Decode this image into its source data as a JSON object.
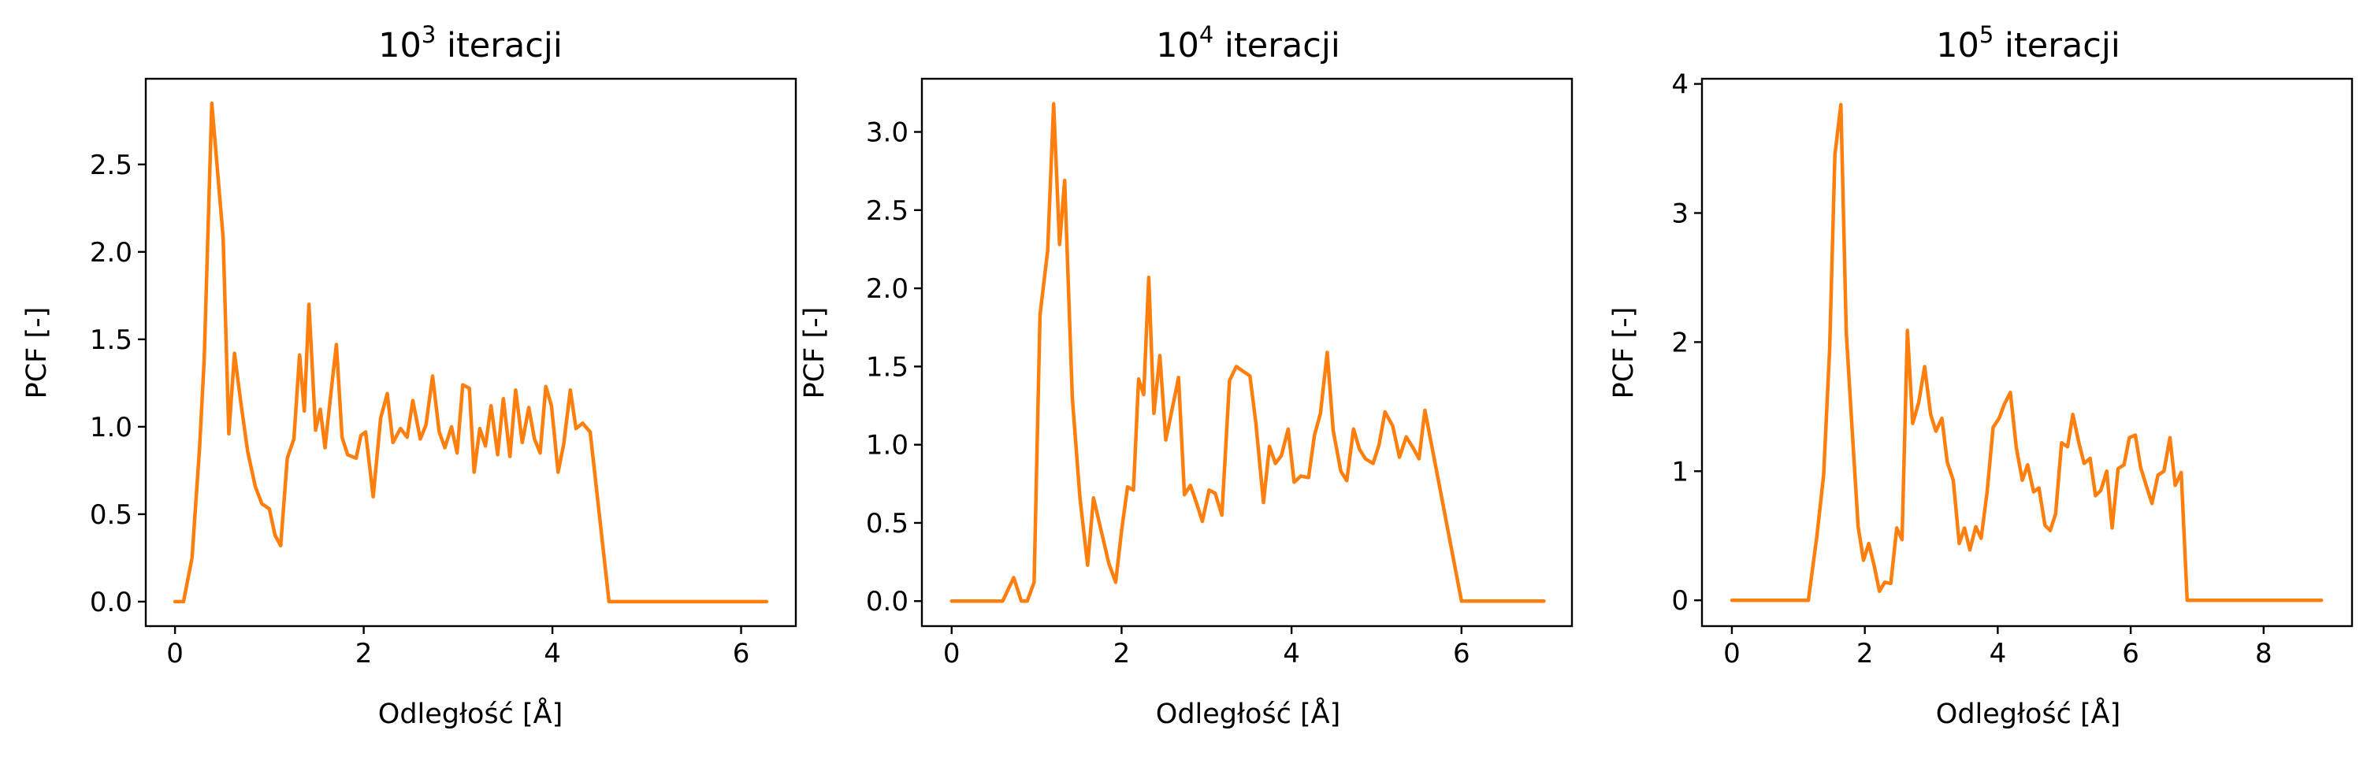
{
  "colors": {
    "series": "#ff7f0e",
    "axes": "#000000",
    "background": "#ffffff"
  },
  "chart_data": [
    {
      "type": "line",
      "title": "10",
      "title_sup": "3",
      "title_suffix": " iteracji",
      "xlabel": "Odległość [Å]",
      "ylabel": "PCF [-]",
      "xlim": [
        -0.31,
        6.58
      ],
      "ylim": [
        -0.14,
        2.99
      ],
      "xticks": [
        0,
        2,
        4,
        6
      ],
      "xtick_labels": [
        "0",
        "2",
        "4",
        "6"
      ],
      "yticks": [
        0.0,
        0.5,
        1.0,
        1.5,
        2.0,
        2.5
      ],
      "ytick_labels": [
        "0.0",
        "0.5",
        "1.0",
        "1.5",
        "2.0",
        "2.5"
      ],
      "grid": false,
      "series": [
        {
          "x": [
            0.0,
            0.09,
            0.18,
            0.26,
            0.31,
            0.39,
            0.44,
            0.51,
            0.57,
            0.63,
            0.7,
            0.77,
            0.85,
            0.92,
            1.0,
            1.06,
            1.12,
            1.19,
            1.26,
            1.32,
            1.37,
            1.42,
            1.49,
            1.54,
            1.59,
            1.65,
            1.71,
            1.77,
            1.83,
            1.92,
            1.97,
            2.02,
            2.1,
            2.18,
            2.25,
            2.31,
            2.39,
            2.46,
            2.52,
            2.6,
            2.66,
            2.73,
            2.8,
            2.86,
            2.93,
            2.99,
            3.05,
            3.12,
            3.17,
            3.23,
            3.29,
            3.35,
            3.42,
            3.48,
            3.55,
            3.61,
            3.68,
            3.75,
            3.81,
            3.87,
            3.93,
            3.99,
            4.06,
            4.12,
            4.19,
            4.25,
            4.32,
            4.4,
            4.6,
            5.0,
            5.5,
            6.0,
            6.27
          ],
          "y": [
            0.0,
            0.0,
            0.25,
            0.88,
            1.39,
            2.85,
            2.53,
            2.08,
            0.96,
            1.42,
            1.13,
            0.86,
            0.66,
            0.56,
            0.53,
            0.38,
            0.32,
            0.82,
            0.93,
            1.41,
            1.09,
            1.7,
            0.98,
            1.1,
            0.88,
            1.18,
            1.47,
            0.94,
            0.84,
            0.82,
            0.95,
            0.97,
            0.6,
            1.05,
            1.19,
            0.91,
            0.99,
            0.94,
            1.15,
            0.93,
            1.01,
            1.29,
            0.97,
            0.88,
            1.0,
            0.85,
            1.24,
            1.22,
            0.74,
            0.99,
            0.89,
            1.12,
            0.84,
            1.16,
            0.83,
            1.21,
            0.91,
            1.11,
            0.93,
            0.85,
            1.23,
            1.12,
            0.74,
            0.9,
            1.21,
            0.99,
            1.02,
            0.97,
            0.0,
            0.0,
            0.0,
            0.0,
            0.0
          ]
        }
      ]
    },
    {
      "type": "line",
      "title": "10",
      "title_sup": "4",
      "title_suffix": " iteracji",
      "xlabel": "Odległość [Å]",
      "ylabel": "PCF [-]",
      "xlim": [
        -0.35,
        7.3
      ],
      "ylim": [
        -0.16,
        3.34
      ],
      "xticks": [
        0,
        2,
        4,
        6
      ],
      "xtick_labels": [
        "0",
        "2",
        "4",
        "6"
      ],
      "yticks": [
        0.0,
        0.5,
        1.0,
        1.5,
        2.0,
        2.5,
        3.0
      ],
      "ytick_labels": [
        "0.0",
        "0.5",
        "1.0",
        "1.5",
        "2.0",
        "2.5",
        "3.0"
      ],
      "grid": false,
      "series": [
        {
          "x": [
            0.0,
            0.3,
            0.6,
            0.73,
            0.82,
            0.89,
            0.97,
            1.04,
            1.13,
            1.2,
            1.27,
            1.33,
            1.42,
            1.51,
            1.6,
            1.67,
            1.76,
            1.85,
            1.93,
            2.0,
            2.07,
            2.14,
            2.2,
            2.26,
            2.32,
            2.38,
            2.45,
            2.52,
            2.6,
            2.67,
            2.74,
            2.81,
            2.88,
            2.95,
            3.03,
            3.1,
            3.18,
            3.27,
            3.35,
            3.43,
            3.51,
            3.58,
            3.67,
            3.74,
            3.81,
            3.88,
            3.96,
            4.03,
            4.11,
            4.2,
            4.27,
            4.34,
            4.42,
            4.49,
            4.58,
            4.65,
            4.73,
            4.8,
            4.87,
            4.96,
            5.03,
            5.1,
            5.19,
            5.27,
            5.35,
            5.43,
            5.5,
            5.57,
            5.7,
            6.0,
            6.5,
            6.97
          ],
          "y": [
            0.0,
            0.0,
            0.0,
            0.15,
            0.0,
            0.0,
            0.12,
            1.83,
            2.24,
            3.18,
            2.28,
            2.69,
            1.3,
            0.66,
            0.23,
            0.66,
            0.45,
            0.24,
            0.12,
            0.45,
            0.73,
            0.71,
            1.42,
            1.32,
            2.07,
            1.2,
            1.57,
            1.03,
            1.24,
            1.43,
            0.68,
            0.74,
            0.63,
            0.51,
            0.71,
            0.69,
            0.55,
            1.41,
            1.5,
            1.47,
            1.44,
            1.14,
            0.63,
            0.99,
            0.88,
            0.93,
            1.1,
            0.76,
            0.8,
            0.79,
            1.06,
            1.2,
            1.59,
            1.09,
            0.83,
            0.77,
            1.1,
            0.97,
            0.91,
            0.88,
            1.0,
            1.21,
            1.12,
            0.92,
            1.05,
            0.98,
            0.91,
            1.22,
            0.85,
            0.0,
            0.0,
            0.0
          ]
        }
      ]
    },
    {
      "type": "line",
      "title": "10",
      "title_sup": "5",
      "title_suffix": " iteracji",
      "xlabel": "Odległość [Å]",
      "ylabel": "PCF [-]",
      "xlim": [
        -0.45,
        9.33
      ],
      "ylim": [
        -0.2,
        4.04
      ],
      "xticks": [
        0,
        2,
        4,
        6,
        8
      ],
      "xtick_labels": [
        "0",
        "2",
        "4",
        "6",
        "8"
      ],
      "yticks": [
        0,
        1,
        2,
        3,
        4
      ],
      "ytick_labels": [
        "0",
        "1",
        "2",
        "3",
        "4"
      ],
      "grid": false,
      "series": [
        {
          "x": [
            0.0,
            0.6,
            1.15,
            1.28,
            1.38,
            1.47,
            1.55,
            1.64,
            1.72,
            1.81,
            1.9,
            1.98,
            2.06,
            2.14,
            2.22,
            2.3,
            2.39,
            2.48,
            2.56,
            2.64,
            2.72,
            2.81,
            2.9,
            2.99,
            3.07,
            3.16,
            3.24,
            3.33,
            3.42,
            3.5,
            3.58,
            3.67,
            3.75,
            3.84,
            3.93,
            4.02,
            4.1,
            4.19,
            4.28,
            4.37,
            4.45,
            4.54,
            4.62,
            4.71,
            4.79,
            4.87,
            4.96,
            5.05,
            5.13,
            5.22,
            5.3,
            5.39,
            5.47,
            5.55,
            5.64,
            5.72,
            5.81,
            5.9,
            5.98,
            6.07,
            6.15,
            6.24,
            6.32,
            6.41,
            6.5,
            6.59,
            6.67,
            6.76,
            6.85,
            6.93,
            7.02,
            7.1,
            7.5,
            8.0,
            8.5,
            8.87
          ],
          "y": [
            0.0,
            0.0,
            0.0,
            0.5,
            0.97,
            1.94,
            3.45,
            3.84,
            2.08,
            1.32,
            0.57,
            0.31,
            0.44,
            0.27,
            0.07,
            0.14,
            0.13,
            0.56,
            0.47,
            2.09,
            1.37,
            1.53,
            1.81,
            1.44,
            1.31,
            1.41,
            1.07,
            0.93,
            0.44,
            0.56,
            0.39,
            0.57,
            0.48,
            0.84,
            1.34,
            1.41,
            1.52,
            1.61,
            1.18,
            0.93,
            1.05,
            0.84,
            0.87,
            0.58,
            0.54,
            0.67,
            1.22,
            1.19,
            1.44,
            1.22,
            1.06,
            1.1,
            0.81,
            0.85,
            1.0,
            0.56,
            1.02,
            1.05,
            1.26,
            1.28,
            1.03,
            0.88,
            0.75,
            0.97,
            1.0,
            1.26,
            0.89,
            0.99,
            0.0,
            0.0,
            0.0,
            0.0,
            0.0,
            0.0,
            0.0,
            0.0
          ]
        }
      ]
    }
  ]
}
